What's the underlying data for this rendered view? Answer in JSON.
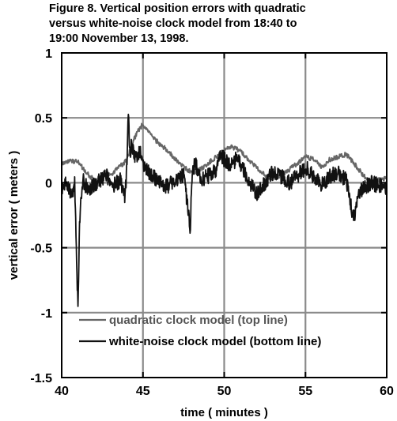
{
  "caption": {
    "line1": "Figure 8.  Vertical position errors with quadratic",
    "line2": "versus white-noise clock model from 18:40 to",
    "line3": "19:00 November 13, 1998."
  },
  "chart_data": {
    "type": "line",
    "xlabel": "time ( minutes )",
    "ylabel": "vertical error ( meters )",
    "xlim": [
      40,
      60
    ],
    "ylim": [
      -1.5,
      1
    ],
    "xticks": [
      40,
      45,
      50,
      55,
      60
    ],
    "yticks": [
      1,
      0.5,
      0,
      -0.5,
      -1,
      -1.5
    ],
    "xtick_labels": [
      "40",
      "45",
      "50",
      "55",
      "60"
    ],
    "ytick_labels": [
      "1",
      "0.5",
      "0",
      "-0.5",
      "-1",
      "-1.5"
    ],
    "grid": true,
    "legend_position": "bottom-left",
    "series": [
      {
        "name": "quadratic clock model (top line)",
        "color": "#666666",
        "x": [
          40.0,
          40.5,
          41.0,
          41.5,
          42.0,
          42.5,
          43.0,
          43.5,
          44.0,
          44.2,
          44.5,
          44.8,
          45.0,
          45.3,
          45.6,
          46.0,
          46.5,
          47.0,
          47.5,
          48.0,
          48.5,
          49.0,
          49.5,
          50.0,
          50.3,
          50.6,
          51.0,
          51.5,
          52.0,
          52.5,
          53.0,
          53.5,
          54.0,
          54.5,
          55.0,
          55.5,
          56.0,
          56.5,
          57.0,
          57.5,
          58.0,
          58.3,
          58.6,
          59.0,
          59.5,
          60.0
        ],
        "y": [
          0.15,
          0.17,
          0.16,
          0.08,
          0.02,
          0.05,
          0.06,
          0.12,
          0.17,
          0.25,
          0.35,
          0.42,
          0.45,
          0.4,
          0.35,
          0.3,
          0.25,
          0.18,
          0.12,
          0.08,
          0.1,
          0.15,
          0.2,
          0.25,
          0.28,
          0.27,
          0.24,
          0.18,
          0.12,
          0.06,
          0.03,
          0.05,
          0.1,
          0.15,
          0.2,
          0.18,
          0.12,
          0.18,
          0.2,
          0.22,
          0.15,
          0.1,
          0.05,
          0.0,
          0.02,
          0.04
        ]
      },
      {
        "name": "white-noise clock model (bottom line)",
        "color": "#111111",
        "x": [
          40.0,
          40.3,
          40.6,
          40.8,
          40.9,
          41.0,
          41.1,
          41.3,
          41.6,
          42.0,
          42.4,
          42.8,
          43.2,
          43.6,
          43.9,
          44.0,
          44.1,
          44.2,
          44.3,
          44.5,
          44.8,
          45.1,
          45.5,
          46.0,
          46.5,
          47.0,
          47.5,
          47.8,
          47.9,
          48.0,
          48.2,
          48.5,
          49.0,
          49.5,
          49.8,
          50.0,
          50.4,
          50.8,
          51.2,
          51.6,
          52.0,
          52.5,
          53.0,
          53.5,
          54.0,
          54.5,
          55.0,
          55.5,
          56.0,
          56.5,
          57.0,
          57.5,
          57.8,
          58.0,
          58.2,
          58.5,
          59.0,
          59.5,
          60.0
        ],
        "y": [
          -0.05,
          0.0,
          -0.1,
          0.0,
          -0.5,
          -0.97,
          -0.3,
          0.02,
          -0.05,
          -0.02,
          0.02,
          0.05,
          -0.02,
          0.02,
          -0.12,
          0.1,
          0.53,
          0.22,
          0.3,
          0.18,
          0.25,
          0.12,
          0.05,
          0.02,
          -0.03,
          0.03,
          0.06,
          -0.22,
          -0.41,
          0.0,
          0.18,
          0.02,
          0.05,
          0.1,
          0.22,
          0.18,
          0.12,
          0.2,
          0.1,
          0.0,
          -0.08,
          0.0,
          0.08,
          0.05,
          0.0,
          0.05,
          0.12,
          0.05,
          -0.02,
          0.05,
          0.08,
          0.02,
          -0.18,
          -0.28,
          -0.1,
          -0.05,
          0.0,
          -0.02,
          -0.05
        ]
      }
    ]
  }
}
